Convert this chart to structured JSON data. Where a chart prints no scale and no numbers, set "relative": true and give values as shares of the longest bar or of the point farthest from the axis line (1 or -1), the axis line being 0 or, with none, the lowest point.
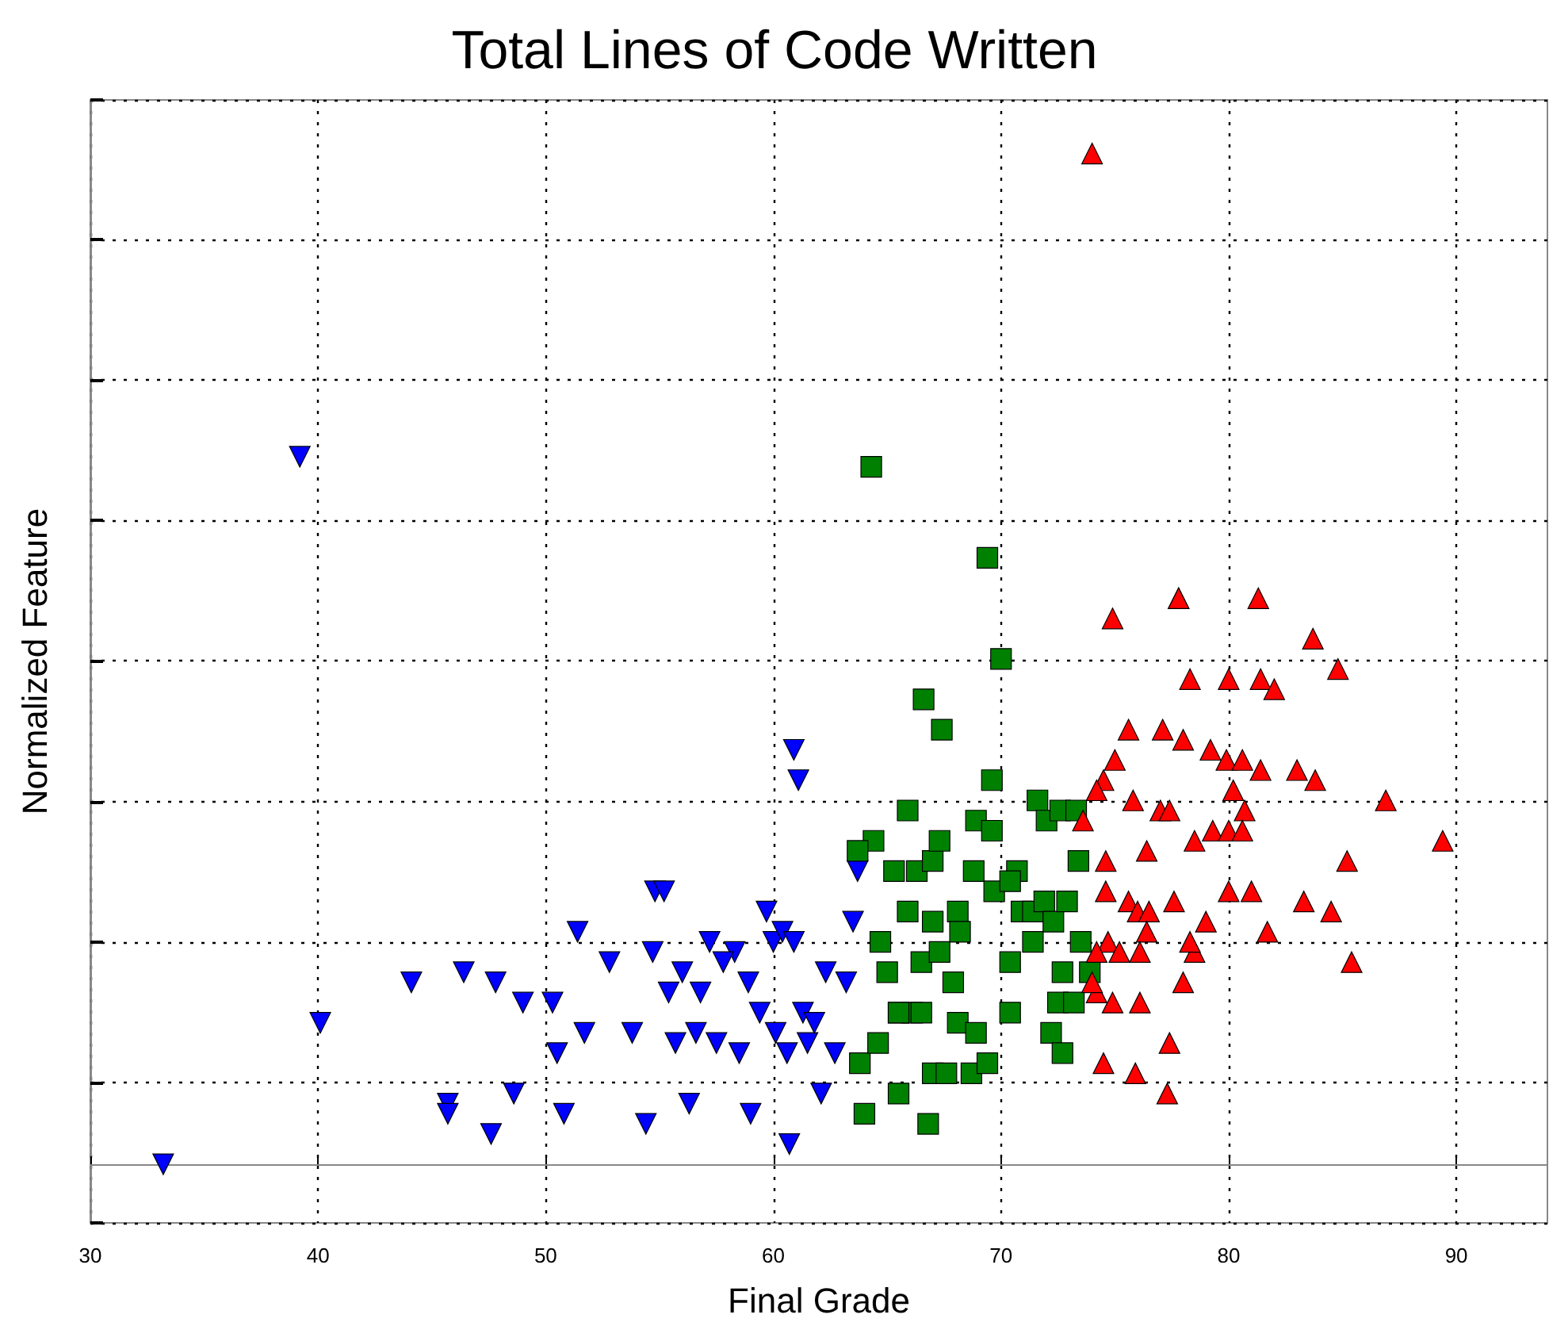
{
  "chart_data": {
    "type": "scatter",
    "title": "Total Lines of Code Written",
    "xlabel": "Final Grade",
    "ylabel": "Normalized Feature",
    "relative": true,
    "grid": true,
    "xlim": [
      30,
      94
    ],
    "xticks": [
      30,
      40,
      50,
      60,
      70,
      80,
      90
    ],
    "series": [
      {
        "color": "#0000ff",
        "marker": "triangle-down",
        "x": [
          33.2,
          39.2,
          40.1,
          44.1,
          45.7,
          45.7,
          46.4,
          47.6,
          47.8,
          48.6,
          49.0,
          50.3,
          50.5,
          50.8,
          51.4,
          51.7,
          52.8,
          53.8,
          54.4,
          54.7,
          54.8,
          55.2,
          55.4,
          55.7,
          56.3,
          56.0,
          56.6,
          57.2,
          57.5,
          56.8,
          58.3,
          58.5,
          59.0,
          59.4,
          59.7,
          60.0,
          60.1,
          60.4,
          60.6,
          60.7,
          60.9,
          61.1,
          61.3,
          61.5,
          61.8,
          62.1,
          62.3,
          62.7,
          63.2,
          63.5,
          63.7,
          58.9,
          57.8,
          60.9
        ],
        "values": [
          0,
          0.7,
          0.14,
          0.18,
          0.06,
          0.05,
          0.19,
          0.03,
          0.18,
          0.07,
          0.16,
          0.16,
          0.11,
          0.05,
          0.23,
          0.13,
          0.2,
          0.13,
          0.04,
          0.21,
          0.27,
          0.27,
          0.17,
          0.12,
          0.06,
          0.19,
          0.13,
          0.22,
          0.12,
          0.17,
          0.21,
          0.11,
          0.05,
          0.15,
          0.25,
          0.22,
          0.13,
          0.23,
          0.11,
          0.02,
          0.41,
          0.38,
          0.15,
          0.12,
          0.14,
          0.07,
          0.19,
          0.11,
          0.18,
          0.24,
          0.29,
          0.18,
          0.2,
          0.22
        ]
      },
      {
        "color": "#008000",
        "marker": "square",
        "x": [
          64.3,
          69.4,
          70.0,
          66.6,
          67.4,
          69.6,
          64.4,
          63.7,
          65.9,
          66.3,
          67.0,
          67.3,
          68.9,
          69.6,
          71.6,
          72.0,
          72.6,
          73.3,
          73.4,
          69.7,
          70.7,
          70.9,
          71.4,
          71.9,
          72.3,
          64.7,
          65.9,
          66.5,
          67.0,
          68.1,
          65.0,
          65.5,
          66.1,
          67.3,
          67.9,
          70.4,
          71.4,
          72.7,
          73.5,
          73.9,
          65.5,
          66.5,
          68.1,
          68.9,
          70.4,
          72.5,
          73.2,
          72.2,
          72.7,
          63.8,
          64.6,
          67.0,
          67.6,
          68.7,
          69.4,
          64.0,
          65.5,
          66.8,
          68.8,
          68.2,
          65.3,
          70.4,
          72.9
        ],
        "values": [
          0.69,
          0.6,
          0.5,
          0.46,
          0.43,
          0.38,
          0.32,
          0.31,
          0.35,
          0.29,
          0.3,
          0.32,
          0.34,
          0.33,
          0.36,
          0.34,
          0.35,
          0.35,
          0.3,
          0.27,
          0.29,
          0.25,
          0.25,
          0.26,
          0.24,
          0.22,
          0.25,
          0.2,
          0.24,
          0.25,
          0.19,
          0.15,
          0.15,
          0.21,
          0.18,
          0.2,
          0.22,
          0.19,
          0.22,
          0.19,
          0.15,
          0.15,
          0.14,
          0.13,
          0.15,
          0.16,
          0.16,
          0.13,
          0.11,
          0.1,
          0.12,
          0.09,
          0.09,
          0.09,
          0.1,
          0.05,
          0.07,
          0.04,
          0.29,
          0.23,
          0.29,
          0.28,
          0.26
        ]
      },
      {
        "color": "#ff0000",
        "marker": "triangle",
        "x": [
          74.0,
          74.9,
          77.8,
          77.8,
          81.3,
          83.7,
          78.3,
          80.0,
          81.4,
          82.0,
          84.8,
          75.6,
          77.1,
          78.0,
          79.2,
          79.9,
          80.6,
          81.4,
          83.0,
          83.8,
          75.0,
          74.5,
          74.2,
          75.8,
          77.0,
          77.4,
          80.2,
          80.7,
          79.3,
          80.0,
          80.6,
          86.9,
          89.4,
          73.6,
          74.6,
          76.4,
          78.5,
          85.2,
          74.6,
          75.6,
          76.0,
          76.5,
          77.6,
          80.0,
          81.0,
          83.3,
          84.5,
          79.0,
          74.7,
          76.4,
          81.7,
          74.2,
          75.2,
          76.1,
          78.5,
          78.3,
          85.4,
          74.2,
          74.9,
          76.1,
          78.0,
          74.0,
          77.4,
          74.5,
          75.9,
          77.3
        ],
        "values": [
          1.0,
          0.54,
          0.56,
          0.56,
          0.56,
          0.52,
          0.48,
          0.48,
          0.48,
          0.47,
          0.49,
          0.43,
          0.43,
          0.42,
          0.41,
          0.4,
          0.4,
          0.39,
          0.39,
          0.38,
          0.4,
          0.38,
          0.37,
          0.36,
          0.35,
          0.35,
          0.37,
          0.35,
          0.33,
          0.33,
          0.33,
          0.36,
          0.32,
          0.34,
          0.3,
          0.31,
          0.32,
          0.3,
          0.27,
          0.26,
          0.25,
          0.25,
          0.26,
          0.27,
          0.27,
          0.26,
          0.25,
          0.24,
          0.22,
          0.23,
          0.23,
          0.21,
          0.21,
          0.21,
          0.21,
          0.22,
          0.2,
          0.17,
          0.16,
          0.16,
          0.18,
          0.18,
          0.12,
          0.1,
          0.09,
          0.07
        ]
      }
    ]
  }
}
